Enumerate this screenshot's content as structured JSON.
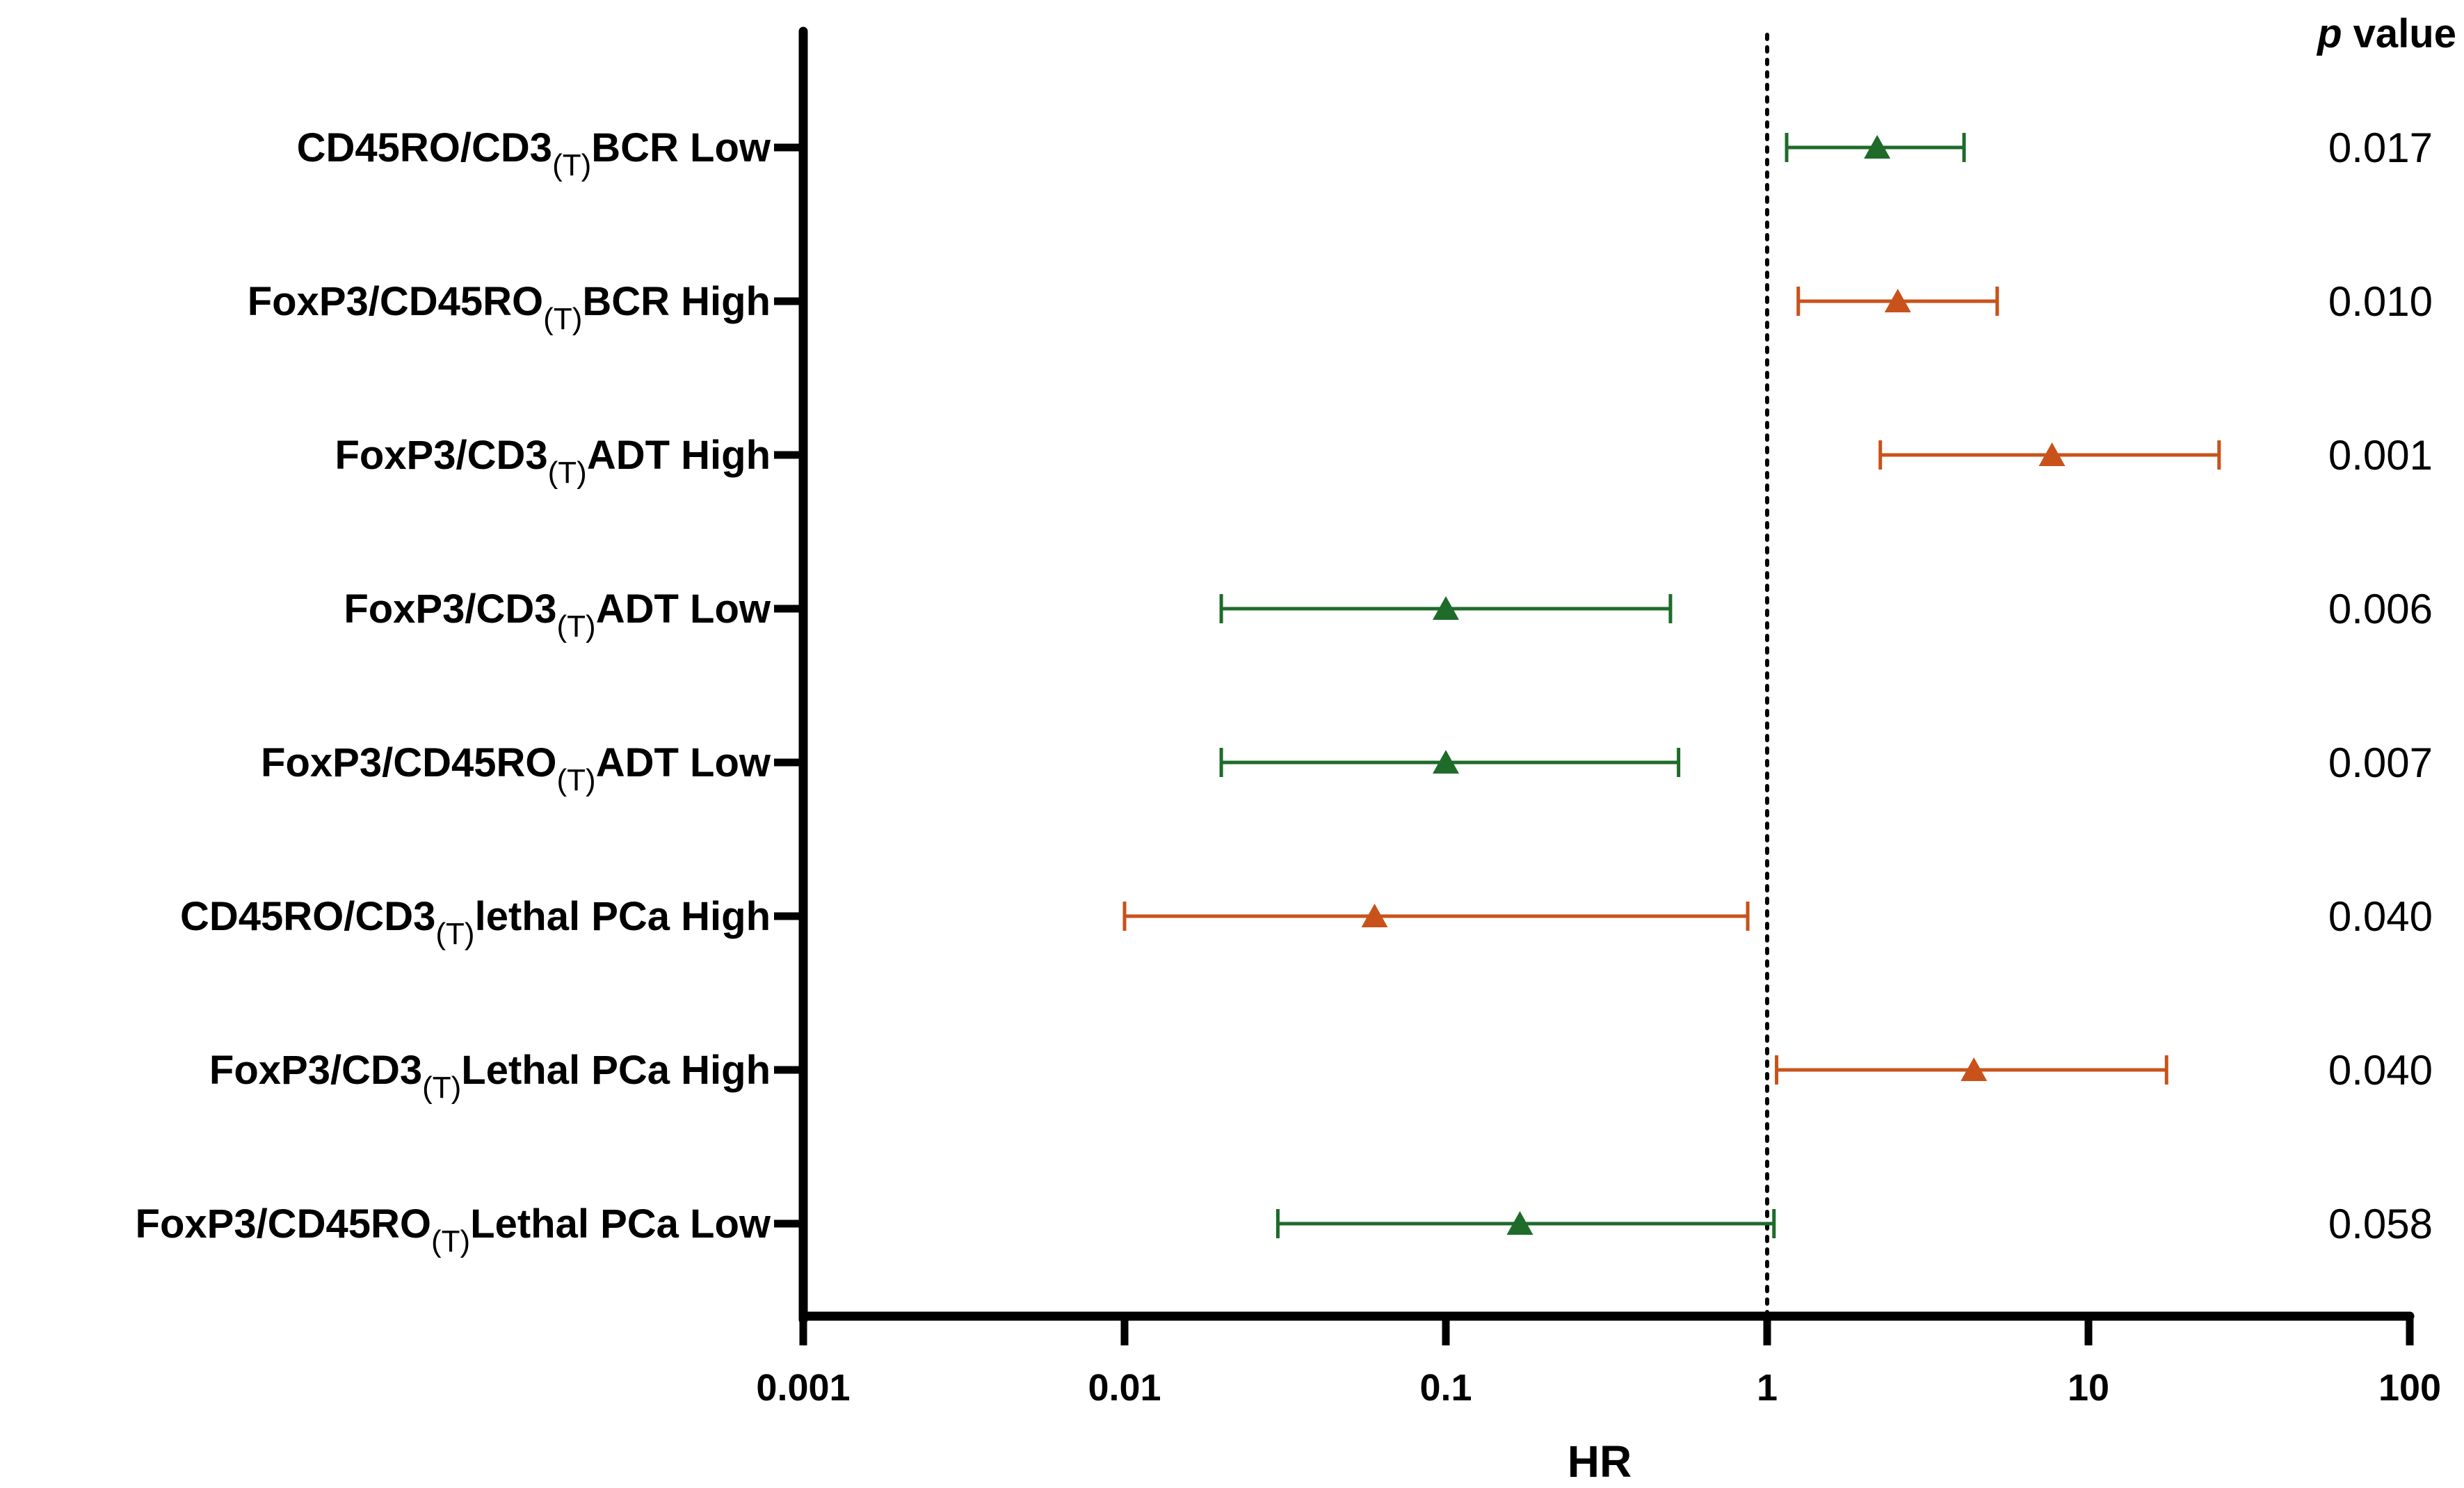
{
  "chart_data": {
    "type": "forest",
    "xlabel": "HR",
    "x_scale": "log10",
    "xlim": [
      0.001,
      100
    ],
    "x_ticks": [
      0.001,
      0.01,
      0.1,
      1,
      10,
      100
    ],
    "x_tick_labels": [
      "0.001",
      "0.01",
      "0.1",
      "1",
      "10",
      "100"
    ],
    "reference_line": 1,
    "pvalue_header": {
      "italic": "p",
      "rest": " value"
    },
    "colors": {
      "high": "#C8521A",
      "low": "#1E6B2A"
    },
    "rows": [
      {
        "label_pre": "CD45RO/CD3",
        "label_sub": "(T)",
        "label_post": "BCR Low",
        "group": "low",
        "hr": 2.2,
        "ci_low": 1.15,
        "ci_high": 4.1,
        "p": "0.017"
      },
      {
        "label_pre": "FoxP3/CD45RO",
        "label_sub": "(T)",
        "label_post": "BCR High",
        "group": "high",
        "hr": 2.55,
        "ci_low": 1.25,
        "ci_high": 5.2,
        "p": "0.010"
      },
      {
        "label_pre": "FoxP3/CD3",
        "label_sub": "(T)",
        "label_post": "ADT High",
        "group": "high",
        "hr": 7.7,
        "ci_low": 2.25,
        "ci_high": 25.5,
        "p": "0.001"
      },
      {
        "label_pre": "FoxP3/CD3",
        "label_sub": "(T)",
        "label_post": "ADT Low",
        "group": "low",
        "hr": 0.1,
        "ci_low": 0.02,
        "ci_high": 0.5,
        "p": "0.006"
      },
      {
        "label_pre": "FoxP3/CD45RO",
        "label_sub": "(T)",
        "label_post": "ADT Low",
        "group": "low",
        "hr": 0.1,
        "ci_low": 0.02,
        "ci_high": 0.53,
        "p": "0.007"
      },
      {
        "label_pre": "CD45RO/CD3",
        "label_sub": "(T)",
        "label_post": "lethal PCa High",
        "group": "high",
        "hr": 0.06,
        "ci_low": 0.01,
        "ci_high": 0.87,
        "p": "0.040"
      },
      {
        "label_pre": "FoxP3/CD3",
        "label_sub": "(T)",
        "label_post": "Lethal PCa High",
        "group": "high",
        "hr": 4.4,
        "ci_low": 1.07,
        "ci_high": 17.5,
        "p": "0.040"
      },
      {
        "label_pre": "FoxP3/CD45RO",
        "label_sub": "(T)",
        "label_post": "Lethal PCa Low",
        "group": "low",
        "hr": 0.17,
        "ci_low": 0.03,
        "ci_high": 1.05,
        "p": "0.058"
      }
    ]
  }
}
